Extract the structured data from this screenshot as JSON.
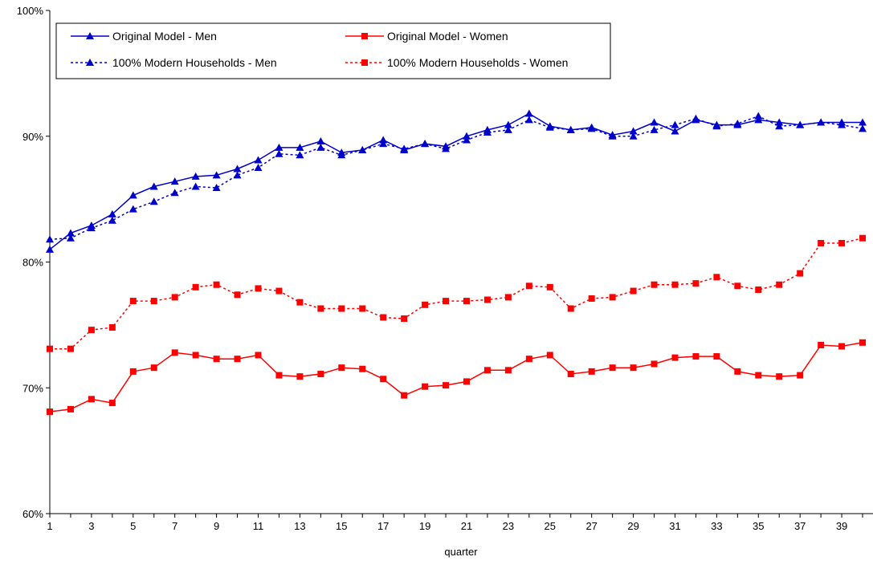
{
  "chart_data": {
    "type": "line",
    "xlabel": "quarter",
    "ylabel": "",
    "ylim": [
      60,
      100
    ],
    "y_ticks": [
      60,
      70,
      80,
      90,
      100
    ],
    "y_tick_suffix": "%",
    "x_ticks": [
      1,
      3,
      5,
      7,
      9,
      11,
      13,
      15,
      17,
      19,
      21,
      23,
      25,
      27,
      29,
      31,
      33,
      35,
      37,
      39
    ],
    "x": [
      1,
      2,
      3,
      4,
      5,
      6,
      7,
      8,
      9,
      10,
      11,
      12,
      13,
      14,
      15,
      16,
      17,
      18,
      19,
      20,
      21,
      22,
      23,
      24,
      25,
      26,
      27,
      28,
      29,
      30,
      31,
      32,
      33,
      34,
      35,
      36,
      37,
      38,
      39,
      40
    ],
    "grid": false,
    "legend_position": "top-left",
    "series": [
      {
        "name": "Original Model - Men",
        "color": "#0000cc",
        "marker": "triangle",
        "dashed": false,
        "values": [
          81.0,
          82.3,
          82.9,
          83.8,
          85.3,
          86.0,
          86.4,
          86.8,
          86.9,
          87.4,
          88.1,
          89.1,
          89.1,
          89.6,
          88.7,
          88.9,
          89.7,
          88.9,
          89.4,
          89.2,
          90.0,
          90.5,
          90.9,
          91.8,
          90.8,
          90.5,
          90.7,
          90.1,
          90.4,
          91.1,
          90.4,
          91.3,
          90.9,
          90.9,
          91.3,
          91.1,
          90.9,
          91.1,
          91.1,
          91.1
        ]
      },
      {
        "name": "Original Model - Women",
        "color": "#ff0000",
        "marker": "square",
        "dashed": false,
        "values": [
          68.1,
          68.3,
          69.1,
          68.8,
          71.3,
          71.6,
          72.8,
          72.6,
          72.3,
          72.3,
          72.6,
          71.0,
          70.9,
          71.1,
          71.6,
          71.5,
          70.7,
          69.4,
          70.1,
          70.2,
          70.5,
          71.4,
          71.4,
          72.3,
          72.6,
          71.1,
          71.3,
          71.6,
          71.6,
          71.9,
          72.4,
          72.5,
          72.5,
          71.3,
          71.0,
          70.9,
          71.0,
          73.4,
          73.3,
          73.6
        ]
      },
      {
        "name": "100% Modern Households - Men",
        "color": "#0000cc",
        "marker": "triangle",
        "dashed": true,
        "values": [
          81.8,
          81.9,
          82.7,
          83.3,
          84.2,
          84.8,
          85.5,
          86.0,
          85.9,
          86.9,
          87.5,
          88.6,
          88.5,
          89.1,
          88.5,
          88.9,
          89.4,
          89.0,
          89.4,
          89.0,
          89.7,
          90.3,
          90.5,
          91.3,
          90.7,
          90.5,
          90.6,
          90.0,
          90.0,
          90.5,
          90.9,
          91.4,
          90.8,
          91.0,
          91.6,
          90.8,
          90.9,
          91.1,
          90.9,
          90.6
        ]
      },
      {
        "name": "100% Modern Households - Women",
        "color": "#ff0000",
        "marker": "square",
        "dashed": true,
        "values": [
          73.1,
          73.1,
          74.6,
          74.8,
          76.9,
          76.9,
          77.2,
          78.0,
          78.2,
          77.4,
          77.9,
          77.7,
          76.8,
          76.3,
          76.3,
          76.3,
          75.6,
          75.5,
          76.6,
          76.9,
          76.9,
          77.0,
          77.2,
          78.1,
          78.0,
          76.3,
          77.1,
          77.2,
          77.7,
          78.2,
          78.2,
          78.3,
          78.8,
          78.1,
          77.8,
          78.2,
          79.1,
          81.5,
          81.5,
          81.9
        ]
      }
    ]
  }
}
